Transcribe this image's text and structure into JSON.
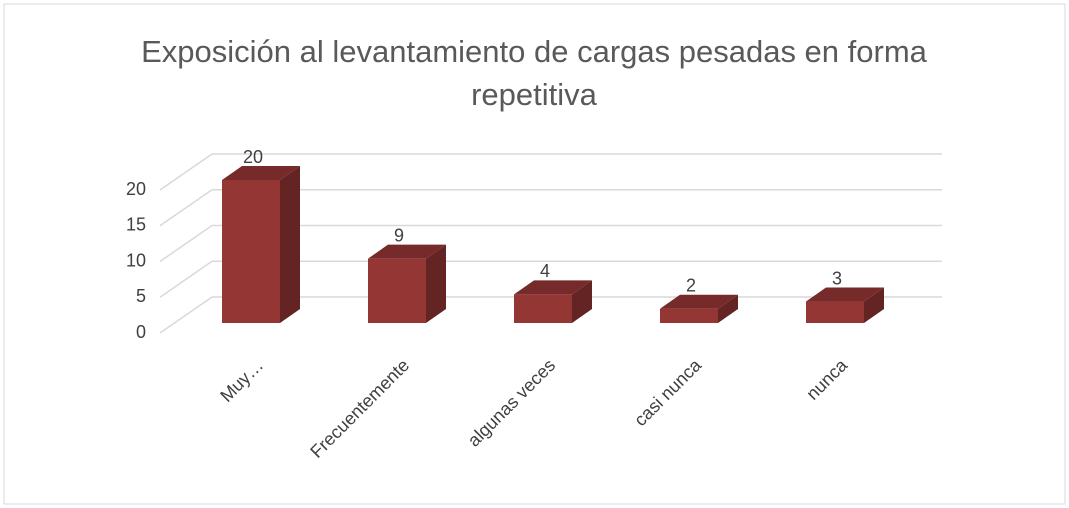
{
  "chart_data": {
    "type": "bar3d",
    "title": "Exposición al levantamiento de cargas pesadas en forma repetitiva",
    "categories": [
      "Muy…",
      "Frecuentemente",
      "algunas veces",
      "casi nunca",
      "nunca"
    ],
    "values": [
      20,
      9,
      4,
      2,
      3
    ],
    "color": "#943634",
    "ylim": [
      0,
      20
    ],
    "yticks": [
      0,
      5,
      10,
      15,
      20
    ],
    "grid": true
  }
}
